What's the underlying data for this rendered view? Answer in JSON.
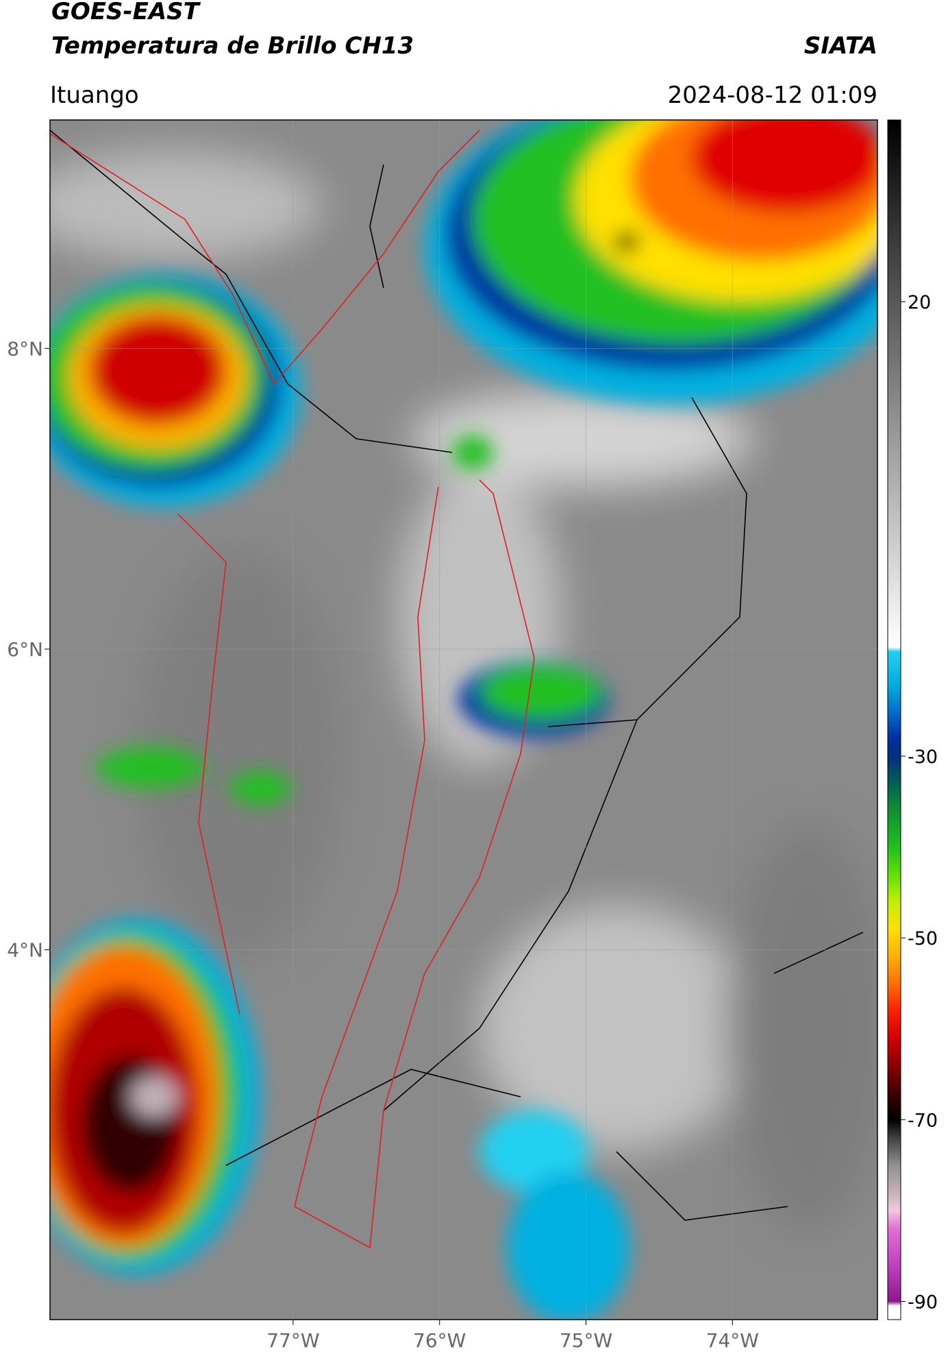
{
  "header": {
    "title": "GOES-EAST",
    "subtitle": "Temperatura de Brillo CH13",
    "source": "SIATA",
    "location": "Ituango",
    "timestamp": "2024-08-12 01:09"
  },
  "map": {
    "xlim": [
      -78.66,
      -73.01
    ],
    "ylim": [
      1.54,
      9.52
    ],
    "xticks": [
      {
        "value": -77,
        "label": "77°W"
      },
      {
        "value": -76,
        "label": "76°W"
      },
      {
        "value": -75,
        "label": "75°W"
      },
      {
        "value": -74,
        "label": "74°W"
      }
    ],
    "yticks": [
      {
        "value": 8,
        "label": "8°N"
      },
      {
        "value": 6,
        "label": "6°N"
      },
      {
        "value": 4,
        "label": "4°N"
      }
    ],
    "grid": true
  },
  "colorbar": {
    "lim": [
      -92,
      40
    ],
    "ticks": [
      20,
      -30,
      -50,
      -70,
      -90
    ],
    "stops": [
      {
        "value": -92,
        "color": "#ffffff"
      },
      {
        "value": -90.5,
        "color": "#ffffff"
      },
      {
        "value": -90,
        "color": "#8b1a8b"
      },
      {
        "value": -86,
        "color": "#c040c0"
      },
      {
        "value": -82,
        "color": "#e070d0"
      },
      {
        "value": -80,
        "color": "#f0c8e0"
      },
      {
        "value": -78,
        "color": "#c8b0b8"
      },
      {
        "value": -75,
        "color": "#909090"
      },
      {
        "value": -72,
        "color": "#404040"
      },
      {
        "value": -70,
        "color": "#000000"
      },
      {
        "value": -67,
        "color": "#400000"
      },
      {
        "value": -64,
        "color": "#8b0000"
      },
      {
        "value": -61,
        "color": "#d00000"
      },
      {
        "value": -58,
        "color": "#ff2000"
      },
      {
        "value": -55,
        "color": "#ff7000"
      },
      {
        "value": -52,
        "color": "#ffb000"
      },
      {
        "value": -49,
        "color": "#ffe000"
      },
      {
        "value": -46,
        "color": "#c0f000"
      },
      {
        "value": -43,
        "color": "#60e000"
      },
      {
        "value": -40,
        "color": "#20c020"
      },
      {
        "value": -36,
        "color": "#109030"
      },
      {
        "value": -33,
        "color": "#006050"
      },
      {
        "value": -30,
        "color": "#003080"
      },
      {
        "value": -28,
        "color": "#0030a0"
      },
      {
        "value": -25,
        "color": "#0070d0"
      },
      {
        "value": -22,
        "color": "#00b0e0"
      },
      {
        "value": -18.5,
        "color": "#20d0f0"
      },
      {
        "value": -18,
        "color": "#ffffff"
      },
      {
        "value": 40,
        "color": "#000000"
      }
    ]
  }
}
